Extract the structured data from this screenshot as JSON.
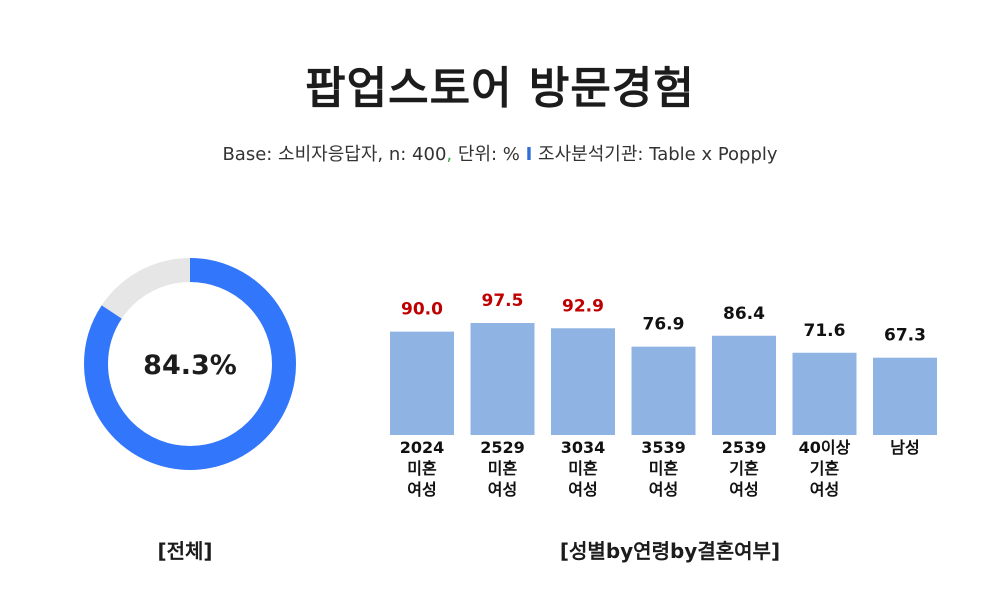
{
  "header": {
    "title": "팝업스토어 방문경험",
    "subtitle_base": "Base: 소비자응답자, n: 400",
    "subtitle_comma": ",",
    "subtitle_unit": " 단위: % ",
    "subtitle_sep": "I",
    "subtitle_source": " 조사분석기관: Table x Popply"
  },
  "colors": {
    "donut_fill": "#3176fb",
    "donut_track": "#e6e6e6",
    "bar": "#8fb4e3",
    "highlight_value": "#c00000",
    "normal_value": "#111111"
  },
  "chart_data": [
    {
      "type": "pie",
      "style": "donut",
      "value": 84.3,
      "label": "84.3%",
      "caption": "[전체]"
    },
    {
      "type": "bar",
      "categories": [
        [
          "2024",
          "미혼",
          "여성"
        ],
        [
          "2529",
          "미혼",
          "여성"
        ],
        [
          "3034",
          "미혼",
          "여성"
        ],
        [
          "3539",
          "미혼",
          "여성"
        ],
        [
          "2539",
          "기혼",
          "여성"
        ],
        [
          "40이상",
          "기혼",
          "여성"
        ],
        [
          "남성"
        ]
      ],
      "values": [
        90.0,
        97.5,
        92.9,
        76.9,
        86.4,
        71.6,
        67.3
      ],
      "value_labels": [
        "90.0",
        "97.5",
        "92.9",
        "76.9",
        "86.4",
        "71.6",
        "67.3"
      ],
      "highlighted": [
        true,
        true,
        true,
        false,
        false,
        false,
        false
      ],
      "ylim": [
        0,
        100
      ],
      "grid": false,
      "caption": "[성별by연령by결혼여부]"
    }
  ]
}
